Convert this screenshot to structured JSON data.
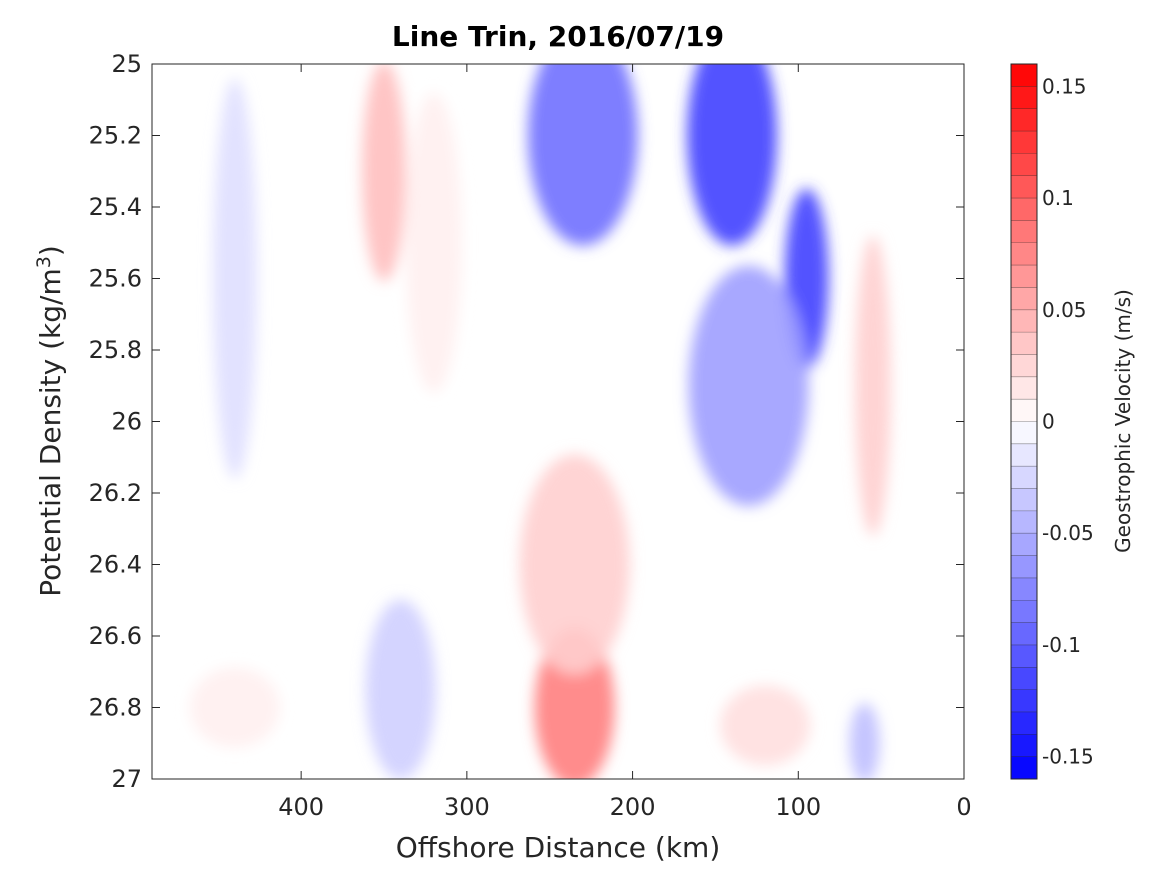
{
  "chart_data": {
    "type": "heatmap",
    "title": "Line Trin, 2016/07/19",
    "xlabel": "Offshore Distance (km)",
    "ylabel": "Potential Density (kg/m",
    "ylabel_sup": "3",
    "ylabel_close": ")",
    "xlim": [
      490,
      0
    ],
    "ylim": [
      25,
      27
    ],
    "y_reversed": true,
    "x_reversed": true,
    "xticks": [
      400,
      300,
      200,
      100,
      0
    ],
    "xtick_labels": [
      "400",
      "300",
      "200",
      "100",
      "0"
    ],
    "yticks": [
      25,
      25.2,
      25.4,
      25.6,
      25.8,
      26,
      26.2,
      26.4,
      26.6,
      26.8,
      27
    ],
    "ytick_labels": [
      "25",
      "25.2",
      "25.4",
      "25.6",
      "25.8",
      "26",
      "26.2",
      "26.4",
      "26.6",
      "26.8",
      "27"
    ],
    "colorbar": {
      "label": "Geostrophic Velocity (m/s)",
      "range": [
        -0.16,
        0.16
      ],
      "levels": 32,
      "ticks": [
        0.15,
        0.1,
        0.05,
        0,
        -0.05,
        -0.1,
        -0.15
      ],
      "tick_labels": [
        "0.15",
        "0.1",
        "0.05",
        "0",
        "-0.05",
        "-0.1",
        "-0.15"
      ],
      "colormap": "blue-white-red",
      "neg_color": "#0000ff",
      "pos_color": "#ff0000",
      "zero_color": "#ffffff"
    },
    "features": [
      {
        "x": 440,
        "y": 25.6,
        "v": -0.02
      },
      {
        "x": 350,
        "y": 25.3,
        "v": 0.04
      },
      {
        "x": 320,
        "y": 25.5,
        "v": 0.01
      },
      {
        "x": 230,
        "y": 25.2,
        "v": -0.09
      },
      {
        "x": 140,
        "y": 25.2,
        "v": -0.12
      },
      {
        "x": 95,
        "y": 25.6,
        "v": -0.12
      },
      {
        "x": 130,
        "y": 25.9,
        "v": -0.06
      },
      {
        "x": 55,
        "y": 25.9,
        "v": 0.03
      },
      {
        "x": 235,
        "y": 26.8,
        "v": 0.08
      },
      {
        "x": 235,
        "y": 26.4,
        "v": 0.03
      },
      {
        "x": 340,
        "y": 26.75,
        "v": -0.03
      },
      {
        "x": 120,
        "y": 26.85,
        "v": 0.02
      },
      {
        "x": 440,
        "y": 26.8,
        "v": 0.01
      },
      {
        "x": 60,
        "y": 26.9,
        "v": -0.04
      }
    ]
  }
}
